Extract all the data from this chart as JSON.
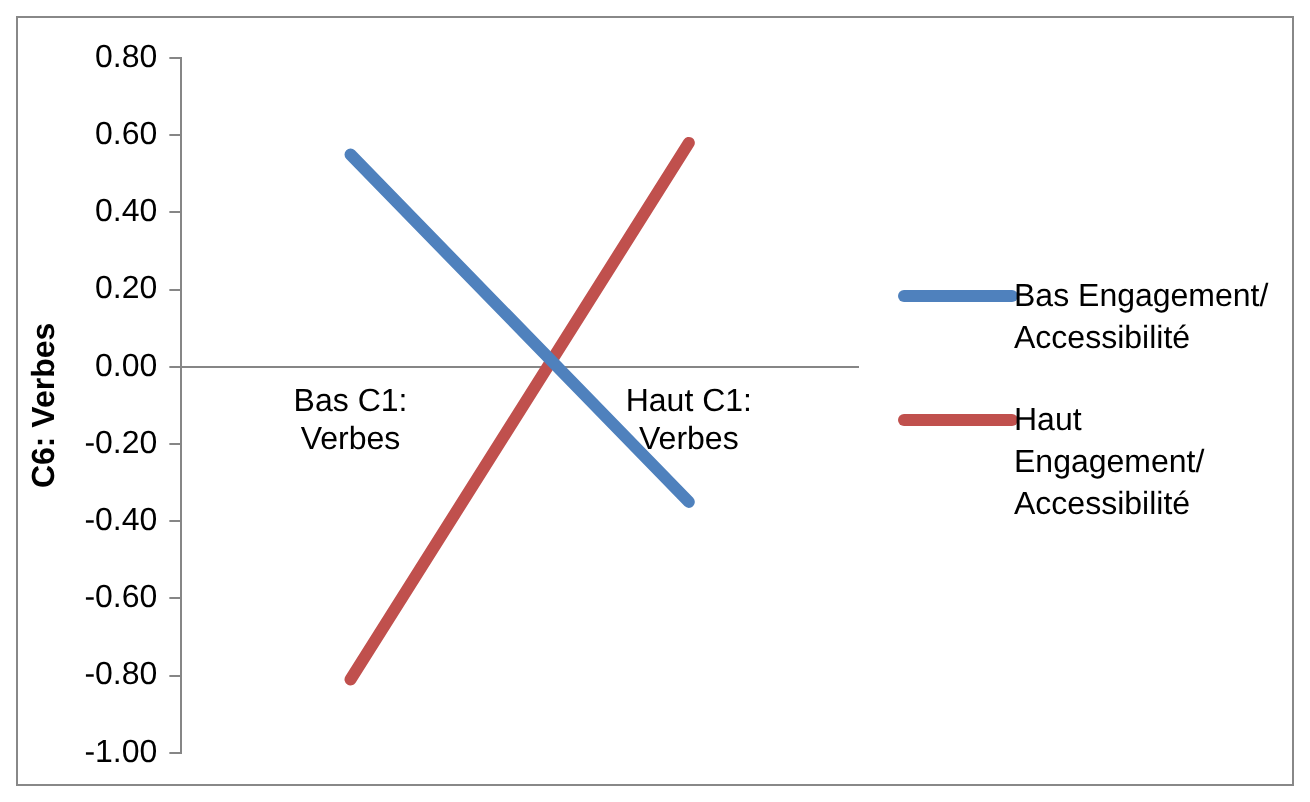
{
  "chart_data": {
    "type": "line",
    "ylabel": "C6: Verbes",
    "categories": [
      "Bas C1: Verbes",
      "Haut C1: Verbes"
    ],
    "series": [
      {
        "name": "Bas Engagement/ Accessibilité",
        "color": "#4f81bd",
        "values": [
          0.55,
          -0.35
        ]
      },
      {
        "name": "Haut Engagement/ Accessibilité",
        "color": "#c0504d",
        "values": [
          -0.81,
          0.58
        ]
      }
    ],
    "ylim": [
      -1,
      0.8
    ],
    "yticks": [
      {
        "value": -1,
        "label": "-1.00"
      },
      {
        "value": -0.8,
        "label": "-0.80"
      },
      {
        "value": -0.6,
        "label": "-0.60"
      },
      {
        "value": -0.4,
        "label": "-0.40"
      },
      {
        "value": -0.2,
        "label": "-0.20"
      },
      {
        "value": 0,
        "label": "0.00"
      },
      {
        "value": 0.2,
        "label": "0.20"
      },
      {
        "value": 0.4,
        "label": "0.40"
      },
      {
        "value": 0.6,
        "label": "0.60"
      },
      {
        "value": 0.8,
        "label": "0.80"
      }
    ],
    "grid": false,
    "legend": "right",
    "marker": "none",
    "line_style": "solid"
  }
}
